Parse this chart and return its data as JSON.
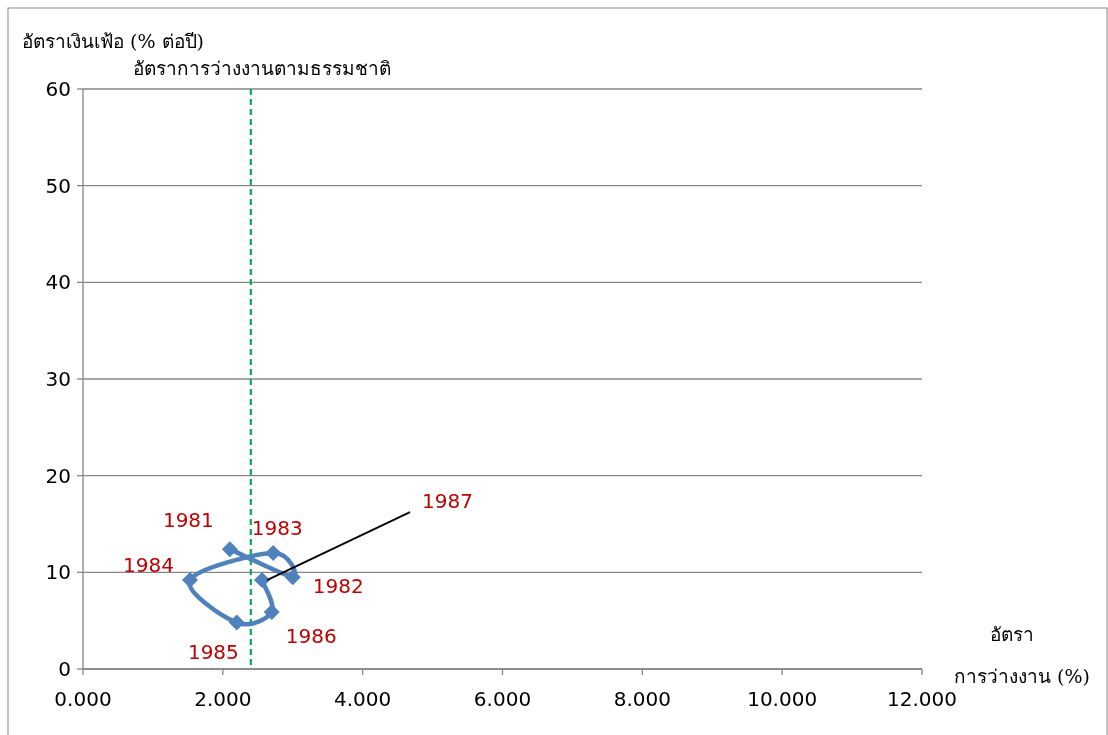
{
  "chart_data": {
    "type": "line",
    "xlabel": "อัตรา การว่างงาน (%)",
    "ylabel": "อัตราเงินเฟ้อ (% ต่อปี)",
    "x": [
      2.1,
      3.0,
      2.72,
      1.53,
      2.2,
      2.7,
      2.56
    ],
    "series": [
      {
        "color": "#4f81bd",
        "values": [
          12.4,
          9.5,
          12.0,
          9.2,
          4.8,
          5.9,
          9.2
        ]
      }
    ],
    "xlim": [
      0,
      12
    ],
    "ylim": [
      0,
      60
    ],
    "xticks": [
      {
        "value": 0,
        "label": "0.000"
      },
      {
        "value": 2,
        "label": "2.000"
      },
      {
        "value": 4,
        "label": "4.000"
      },
      {
        "value": 6,
        "label": "6.000"
      },
      {
        "value": 8,
        "label": "8.000"
      },
      {
        "value": 10,
        "label": "10.000"
      },
      {
        "value": 12,
        "label": "12.000"
      }
    ],
    "yticks": [
      0,
      10,
      20,
      30,
      40,
      50,
      60
    ],
    "grid": "y",
    "marker": "diamond",
    "ref_lines": [
      {
        "axis": "x",
        "value": 2.4,
        "label": "อัตราการว่างงานตามธรรมชาติ",
        "color": "#00b050",
        "line_style": "dashed"
      }
    ],
    "annotations": [
      {
        "text": "1981",
        "x": 2.1,
        "y": 12.4
      },
      {
        "text": "1982",
        "x": 3.0,
        "y": 9.5
      },
      {
        "text": "1983",
        "x": 2.72,
        "y": 12.0
      },
      {
        "text": "1984",
        "x": 1.53,
        "y": 9.2
      },
      {
        "text": "1985",
        "x": 2.2,
        "y": 4.8
      },
      {
        "text": "1986",
        "x": 2.7,
        "y": 5.9
      },
      {
        "text": "1987",
        "x": 2.56,
        "y": 9.2
      }
    ]
  }
}
